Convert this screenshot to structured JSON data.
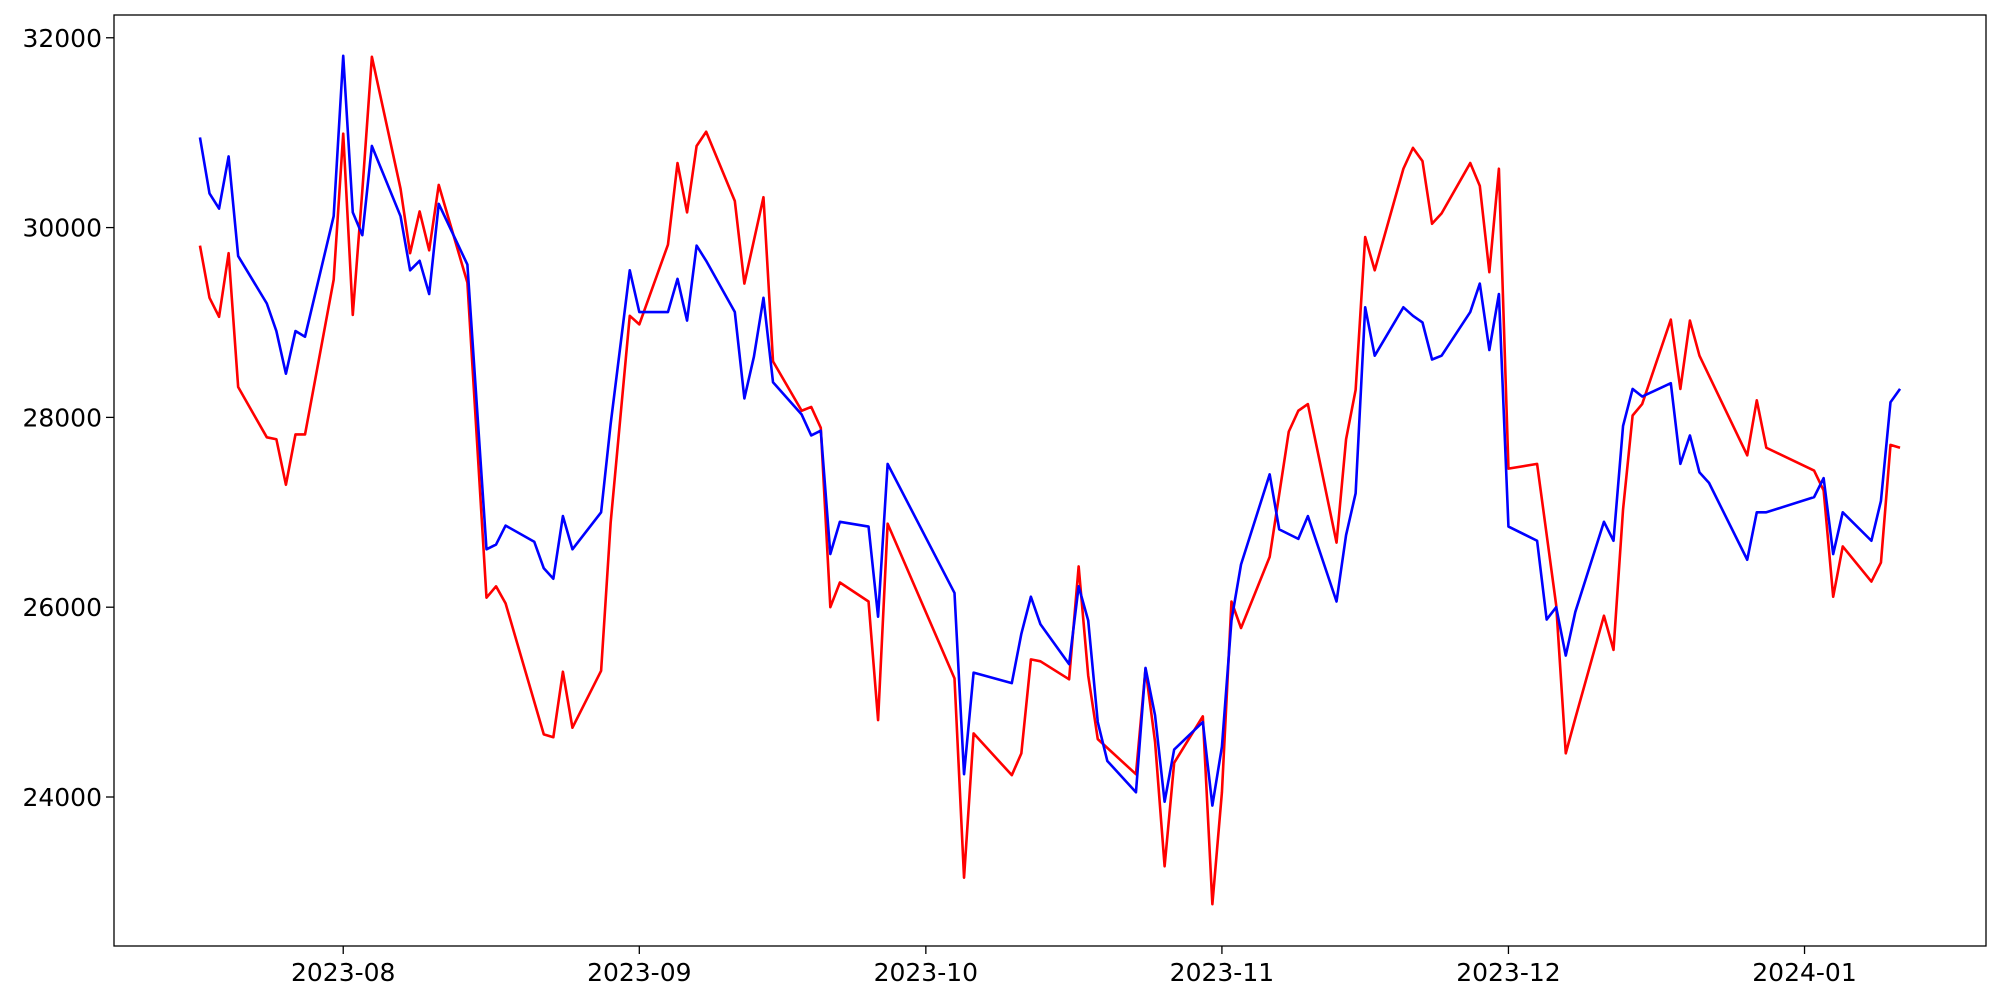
{
  "chart_data": {
    "type": "line",
    "xlim": [
      0,
      196
    ],
    "xticks": [
      {
        "value": 24,
        "label": "2023-08"
      },
      {
        "value": 55,
        "label": "2023-09"
      },
      {
        "value": 85,
        "label": "2023-10"
      },
      {
        "value": 116,
        "label": "2023-11"
      },
      {
        "value": 146,
        "label": "2023-12"
      },
      {
        "value": 177,
        "label": "2024-01"
      }
    ],
    "ylim": [
      22430,
      32240
    ],
    "yticks": [
      24000,
      26000,
      28000,
      30000,
      32000
    ],
    "grid": false,
    "series": [
      {
        "color": "#ff0000",
        "x": [
          9,
          10,
          11,
          12,
          13,
          16,
          17,
          18,
          19,
          20,
          23,
          24,
          25,
          26,
          27,
          30,
          31,
          32,
          33,
          34,
          37,
          39,
          40,
          41,
          45,
          46,
          47,
          48,
          51,
          52,
          54,
          55,
          58,
          59,
          60,
          61,
          62,
          65,
          66,
          68,
          69,
          72,
          73,
          74,
          75,
          76,
          79,
          80,
          81,
          88,
          89,
          90,
          94,
          95,
          96,
          97,
          100,
          101,
          102,
          103,
          107,
          108,
          109,
          110,
          111,
          114,
          115,
          116,
          117,
          118,
          121,
          123,
          124,
          125,
          128,
          129,
          130,
          131,
          132,
          135,
          136,
          137,
          138,
          139,
          142,
          143,
          144,
          145,
          146,
          149,
          151,
          152,
          153,
          156,
          157,
          158,
          159,
          160,
          163,
          164,
          165,
          166,
          171,
          172,
          173,
          178,
          179,
          180,
          181,
          184,
          185,
          186,
          187
        ],
        "values": [
          29810,
          29260,
          29060,
          29730,
          28320,
          27790,
          27770,
          27290,
          27820,
          27820,
          29450,
          30990,
          29080,
          30390,
          31800,
          30410,
          29730,
          30170,
          29760,
          30450,
          29420,
          26100,
          26220,
          26040,
          24660,
          24630,
          25320,
          24730,
          25330,
          26890,
          29070,
          28980,
          29820,
          30680,
          30160,
          30860,
          31010,
          30280,
          29410,
          30320,
          28590,
          28070,
          28110,
          27890,
          26000,
          26260,
          26060,
          24810,
          26880,
          25250,
          23150,
          24670,
          24230,
          24460,
          25450,
          25430,
          25240,
          26430,
          25280,
          24610,
          24240,
          25350,
          24580,
          23270,
          24360,
          24850,
          22870,
          24050,
          26060,
          25780,
          26530,
          27850,
          28070,
          28140,
          26680,
          27770,
          28290,
          29900,
          29550,
          30620,
          30840,
          30700,
          30040,
          30150,
          30680,
          30440,
          29530,
          30620,
          27460,
          27510,
          26020,
          24460,
          24830,
          25910,
          25550,
          27030,
          28020,
          28140,
          29030,
          28300,
          29020,
          28650,
          27600,
          28180,
          27680,
          27440,
          27230,
          26110,
          26640,
          26270,
          26470,
          27710,
          27680
        ]
      },
      {
        "color": "#0000ff",
        "x": [
          9,
          10,
          11,
          12,
          13,
          16,
          17,
          18,
          19,
          20,
          23,
          24,
          25,
          26,
          27,
          30,
          31,
          32,
          33,
          34,
          37,
          39,
          40,
          41,
          44,
          45,
          46,
          47,
          48,
          51,
          52,
          54,
          55,
          58,
          59,
          60,
          61,
          62,
          65,
          66,
          67,
          68,
          69,
          72,
          73,
          74,
          75,
          76,
          79,
          80,
          81,
          88,
          89,
          90,
          94,
          95,
          96,
          97,
          100,
          101,
          102,
          103,
          104,
          107,
          108,
          109,
          110,
          111,
          114,
          115,
          116,
          117,
          118,
          121,
          122,
          124,
          125,
          128,
          129,
          130,
          131,
          132,
          135,
          136,
          137,
          138,
          139,
          142,
          143,
          144,
          145,
          146,
          149,
          150,
          151,
          152,
          153,
          156,
          157,
          158,
          159,
          160,
          163,
          164,
          165,
          166,
          167,
          171,
          172,
          173,
          178,
          179,
          180,
          181,
          184,
          185,
          186,
          187
        ],
        "values": [
          30950,
          30360,
          30200,
          30750,
          29700,
          29200,
          28910,
          28460,
          28910,
          28850,
          30120,
          31810,
          30160,
          29920,
          30860,
          30120,
          29550,
          29650,
          29300,
          30250,
          29610,
          26610,
          26660,
          26860,
          26690,
          26410,
          26300,
          26960,
          26610,
          27000,
          27930,
          29550,
          29110,
          29110,
          29460,
          29020,
          29810,
          29650,
          29110,
          28200,
          28640,
          29260,
          28370,
          28030,
          27810,
          27860,
          26560,
          26900,
          26850,
          25900,
          27510,
          26150,
          24240,
          25310,
          25200,
          25720,
          26110,
          25820,
          25400,
          26220,
          25860,
          24790,
          24380,
          24050,
          25360,
          24860,
          23950,
          24500,
          24790,
          23910,
          24530,
          25860,
          26450,
          27400,
          26820,
          26720,
          26960,
          26060,
          26760,
          27200,
          29160,
          28650,
          29160,
          29070,
          29000,
          28610,
          28650,
          29110,
          29410,
          28710,
          29300,
          26850,
          26700,
          25870,
          26000,
          25490,
          25950,
          26900,
          26700,
          27910,
          28300,
          28220,
          28360,
          27510,
          27810,
          27420,
          27310,
          26500,
          27000,
          27000,
          27160,
          27360,
          26560,
          27000,
          26700,
          27120,
          28160,
          28300
        ]
      }
    ]
  }
}
